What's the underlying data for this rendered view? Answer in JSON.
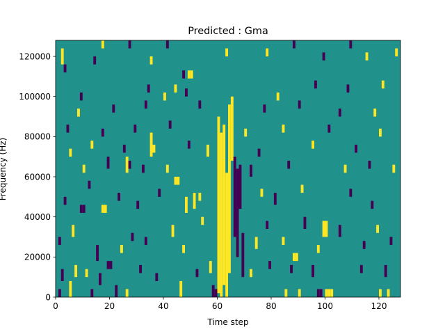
{
  "chart_data": {
    "type": "heatmap",
    "title": "Predicted : Gma",
    "xlabel": "Time step",
    "ylabel": "Frequency (Hz)",
    "xlim": [
      0,
      128
    ],
    "ylim": [
      0,
      128000
    ],
    "x_ticks": [
      0,
      20,
      40,
      60,
      80,
      100,
      120
    ],
    "y_ticks": [
      0,
      20000,
      40000,
      60000,
      80000,
      100000,
      120000
    ],
    "x_tick_labels": [
      "0",
      "20",
      "40",
      "60",
      "80",
      "100",
      "120"
    ],
    "y_tick_labels": [
      "0",
      "20000",
      "40000",
      "60000",
      "80000",
      "100000",
      "120000"
    ],
    "n_time_steps": 128,
    "n_freq_bins": 128,
    "bin_height_hz": 1000,
    "grid": false,
    "colormap": "viridis",
    "colors": {
      "background": "#21918c",
      "high": "#fde725",
      "low": "#440154"
    },
    "cells": [
      {
        "t": 58,
        "f0": 0,
        "f1": 6000,
        "level": "low"
      },
      {
        "t": 59,
        "f0": 0,
        "f1": 4000,
        "level": "low"
      },
      {
        "t": 60,
        "f0": 2000,
        "f1": 90000,
        "level": "high"
      },
      {
        "t": 61,
        "f0": 0,
        "f1": 82000,
        "level": "high"
      },
      {
        "t": 62,
        "f0": 6000,
        "f1": 86000,
        "level": "high"
      },
      {
        "t": 63,
        "f0": 0,
        "f1": 62000,
        "level": "high"
      },
      {
        "t": 64,
        "f0": 12000,
        "f1": 96000,
        "level": "high"
      },
      {
        "t": 65,
        "f0": 68000,
        "f1": 100000,
        "level": "high"
      },
      {
        "t": 66,
        "f0": 30000,
        "f1": 70000,
        "level": "low"
      },
      {
        "t": 67,
        "f0": 20000,
        "f1": 64000,
        "level": "low"
      },
      {
        "t": 68,
        "f0": 44000,
        "f1": 66000,
        "level": "low"
      },
      {
        "t": 69,
        "f0": 10000,
        "f1": 32000,
        "level": "low"
      },
      {
        "t": 97,
        "f0": 0,
        "f1": 4000,
        "level": "low"
      },
      {
        "t": 98,
        "f0": 0,
        "f1": 4000,
        "level": "low"
      },
      {
        "t": 100,
        "f0": 0,
        "f1": 4000,
        "level": "high"
      },
      {
        "t": 101,
        "f0": 0,
        "f1": 4000,
        "level": "high"
      },
      {
        "t": 102,
        "f0": 0,
        "f1": 4000,
        "level": "high"
      },
      {
        "t": 47,
        "f0": 109000,
        "f1": 113000,
        "level": "low"
      },
      {
        "t": 49,
        "f0": 109000,
        "f1": 113000,
        "level": "high"
      },
      {
        "t": 50,
        "f0": 109000,
        "f1": 113000,
        "level": "high"
      },
      {
        "t": 2,
        "f0": 116000,
        "f1": 124000,
        "level": "high"
      },
      {
        "t": 3,
        "f0": 112000,
        "f1": 116000,
        "level": "low"
      },
      {
        "t": 17,
        "f0": 124000,
        "f1": 128000,
        "level": "high"
      },
      {
        "t": 26,
        "f0": 62000,
        "f1": 70000,
        "level": "high"
      },
      {
        "t": 27,
        "f0": 64000,
        "f1": 68000,
        "level": "low"
      },
      {
        "t": 18,
        "f0": 42000,
        "f1": 46000,
        "level": "high"
      },
      {
        "t": 17,
        "f0": 42000,
        "f1": 46000,
        "level": "high"
      },
      {
        "t": 9,
        "f0": 42000,
        "f1": 46000,
        "level": "low"
      },
      {
        "t": 10,
        "f0": 42000,
        "f1": 46000,
        "level": "low"
      },
      {
        "t": 19,
        "f0": 14000,
        "f1": 18000,
        "level": "low"
      },
      {
        "t": 20,
        "f0": 14000,
        "f1": 18000,
        "level": "low"
      },
      {
        "t": 88,
        "f0": 18000,
        "f1": 22000,
        "level": "high"
      },
      {
        "t": 89,
        "f0": 18000,
        "f1": 22000,
        "level": "high"
      },
      {
        "t": 99,
        "f0": 30000,
        "f1": 38000,
        "level": "high"
      },
      {
        "t": 100,
        "f0": 30000,
        "f1": 38000,
        "level": "high"
      },
      {
        "t": 48,
        "f0": 42000,
        "f1": 50000,
        "level": "high"
      },
      {
        "t": 51,
        "f0": 44000,
        "f1": 52000,
        "level": "high"
      },
      {
        "t": 44,
        "f0": 56000,
        "f1": 60000,
        "level": "high"
      },
      {
        "t": 45,
        "f0": 56000,
        "f1": 60000,
        "level": "high"
      },
      {
        "t": 56,
        "f0": 70000,
        "f1": 76000,
        "level": "high"
      },
      {
        "t": 35,
        "f0": 70000,
        "f1": 82000,
        "level": "high"
      },
      {
        "t": 40,
        "f0": 98000,
        "f1": 102000,
        "level": "high"
      },
      {
        "t": 44,
        "f0": 102000,
        "f1": 106000,
        "level": "high"
      },
      {
        "t": 1,
        "f0": 0,
        "f1": 4000,
        "level": "low"
      },
      {
        "t": 5,
        "f0": 0,
        "f1": 8000,
        "level": "high"
      },
      {
        "t": 13,
        "f0": 0,
        "f1": 4000,
        "level": "low"
      },
      {
        "t": 22,
        "f0": 0,
        "f1": 6000,
        "level": "low"
      },
      {
        "t": 26,
        "f0": 0,
        "f1": 4000,
        "level": "high"
      },
      {
        "t": 46,
        "f0": 0,
        "f1": 8000,
        "level": "high"
      },
      {
        "t": 85,
        "f0": 0,
        "f1": 4000,
        "level": "high"
      },
      {
        "t": 90,
        "f0": 0,
        "f1": 4000,
        "level": "high"
      },
      {
        "t": 120,
        "f0": 0,
        "f1": 4000,
        "level": "high"
      },
      {
        "t": 123,
        "f0": 0,
        "f1": 4000,
        "level": "high"
      },
      {
        "t": 2,
        "f0": 8000,
        "f1": 14000,
        "level": "low"
      },
      {
        "t": 7,
        "f0": 10000,
        "f1": 16000,
        "level": "high"
      },
      {
        "t": 11,
        "f0": 10000,
        "f1": 14000,
        "level": "high"
      },
      {
        "t": 16,
        "f0": 6000,
        "f1": 12000,
        "level": "low"
      },
      {
        "t": 31,
        "f0": 12000,
        "f1": 16000,
        "level": "low"
      },
      {
        "t": 37,
        "f0": 8000,
        "f1": 12000,
        "level": "low"
      },
      {
        "t": 52,
        "f0": 10000,
        "f1": 14000,
        "level": "low"
      },
      {
        "t": 57,
        "f0": 12000,
        "f1": 18000,
        "level": "high"
      },
      {
        "t": 72,
        "f0": 10000,
        "f1": 14000,
        "level": "high"
      },
      {
        "t": 79,
        "f0": 14000,
        "f1": 18000,
        "level": "low"
      },
      {
        "t": 87,
        "f0": 12000,
        "f1": 16000,
        "level": "low"
      },
      {
        "t": 95,
        "f0": 10000,
        "f1": 16000,
        "level": "low"
      },
      {
        "t": 113,
        "f0": 12000,
        "f1": 16000,
        "level": "low"
      },
      {
        "t": 122,
        "f0": 10000,
        "f1": 16000,
        "level": "low"
      },
      {
        "t": 1,
        "f0": 26000,
        "f1": 30000,
        "level": "low"
      },
      {
        "t": 6,
        "f0": 30000,
        "f1": 36000,
        "level": "high"
      },
      {
        "t": 15,
        "f0": 18000,
        "f1": 26000,
        "level": "low"
      },
      {
        "t": 24,
        "f0": 22000,
        "f1": 26000,
        "level": "high"
      },
      {
        "t": 28,
        "f0": 28000,
        "f1": 32000,
        "level": "low"
      },
      {
        "t": 33,
        "f0": 26000,
        "f1": 30000,
        "level": "low"
      },
      {
        "t": 43,
        "f0": 30000,
        "f1": 36000,
        "level": "high"
      },
      {
        "t": 47,
        "f0": 22000,
        "f1": 26000,
        "level": "high"
      },
      {
        "t": 54,
        "f0": 36000,
        "f1": 40000,
        "level": "high"
      },
      {
        "t": 74,
        "f0": 24000,
        "f1": 30000,
        "level": "high"
      },
      {
        "t": 78,
        "f0": 34000,
        "f1": 38000,
        "level": "low"
      },
      {
        "t": 84,
        "f0": 26000,
        "f1": 30000,
        "level": "high"
      },
      {
        "t": 92,
        "f0": 34000,
        "f1": 40000,
        "level": "low"
      },
      {
        "t": 97,
        "f0": 22000,
        "f1": 26000,
        "level": "high"
      },
      {
        "t": 105,
        "f0": 30000,
        "f1": 36000,
        "level": "low"
      },
      {
        "t": 114,
        "f0": 24000,
        "f1": 28000,
        "level": "low"
      },
      {
        "t": 119,
        "f0": 32000,
        "f1": 36000,
        "level": "high"
      },
      {
        "t": 124,
        "f0": 26000,
        "f1": 30000,
        "level": "low"
      },
      {
        "t": 3,
        "f0": 46000,
        "f1": 50000,
        "level": "low"
      },
      {
        "t": 12,
        "f0": 54000,
        "f1": 58000,
        "level": "low"
      },
      {
        "t": 23,
        "f0": 48000,
        "f1": 52000,
        "level": "low"
      },
      {
        "t": 30,
        "f0": 44000,
        "f1": 48000,
        "level": "low"
      },
      {
        "t": 38,
        "f0": 50000,
        "f1": 54000,
        "level": "low"
      },
      {
        "t": 53,
        "f0": 48000,
        "f1": 52000,
        "level": "high"
      },
      {
        "t": 76,
        "f0": 50000,
        "f1": 54000,
        "level": "high"
      },
      {
        "t": 81,
        "f0": 46000,
        "f1": 52000,
        "level": "low"
      },
      {
        "t": 91,
        "f0": 52000,
        "f1": 56000,
        "level": "high"
      },
      {
        "t": 109,
        "f0": 50000,
        "f1": 54000,
        "level": "low"
      },
      {
        "t": 117,
        "f0": 44000,
        "f1": 48000,
        "level": "low"
      },
      {
        "t": 10,
        "f0": 62000,
        "f1": 66000,
        "level": "high"
      },
      {
        "t": 19,
        "f0": 64000,
        "f1": 70000,
        "level": "low"
      },
      {
        "t": 32,
        "f0": 62000,
        "f1": 66000,
        "level": "low"
      },
      {
        "t": 41,
        "f0": 62000,
        "f1": 66000,
        "level": "high"
      },
      {
        "t": 72,
        "f0": 60000,
        "f1": 66000,
        "level": "low"
      },
      {
        "t": 86,
        "f0": 64000,
        "f1": 68000,
        "level": "low"
      },
      {
        "t": 107,
        "f0": 62000,
        "f1": 66000,
        "level": "high"
      },
      {
        "t": 116,
        "f0": 64000,
        "f1": 68000,
        "level": "low"
      },
      {
        "t": 125,
        "f0": 62000,
        "f1": 66000,
        "level": "high"
      },
      {
        "t": 5,
        "f0": 70000,
        "f1": 74000,
        "level": "high"
      },
      {
        "t": 13,
        "f0": 74000,
        "f1": 78000,
        "level": "high"
      },
      {
        "t": 25,
        "f0": 72000,
        "f1": 76000,
        "level": "low"
      },
      {
        "t": 36,
        "f0": 72000,
        "f1": 76000,
        "level": "high"
      },
      {
        "t": 49,
        "f0": 74000,
        "f1": 78000,
        "level": "low"
      },
      {
        "t": 75,
        "f0": 70000,
        "f1": 74000,
        "level": "low"
      },
      {
        "t": 95,
        "f0": 74000,
        "f1": 78000,
        "level": "high"
      },
      {
        "t": 111,
        "f0": 72000,
        "f1": 76000,
        "level": "low"
      },
      {
        "t": 4,
        "f0": 82000,
        "f1": 86000,
        "level": "low"
      },
      {
        "t": 17,
        "f0": 80000,
        "f1": 84000,
        "level": "low"
      },
      {
        "t": 29,
        "f0": 82000,
        "f1": 86000,
        "level": "low"
      },
      {
        "t": 42,
        "f0": 84000,
        "f1": 88000,
        "level": "low"
      },
      {
        "t": 70,
        "f0": 80000,
        "f1": 84000,
        "level": "high"
      },
      {
        "t": 84,
        "f0": 82000,
        "f1": 86000,
        "level": "high"
      },
      {
        "t": 101,
        "f0": 82000,
        "f1": 86000,
        "level": "low"
      },
      {
        "t": 120,
        "f0": 80000,
        "f1": 84000,
        "level": "high"
      },
      {
        "t": 8,
        "f0": 90000,
        "f1": 94000,
        "level": "high"
      },
      {
        "t": 21,
        "f0": 92000,
        "f1": 96000,
        "level": "low"
      },
      {
        "t": 33,
        "f0": 94000,
        "f1": 98000,
        "level": "low"
      },
      {
        "t": 53,
        "f0": 94000,
        "f1": 98000,
        "level": "low"
      },
      {
        "t": 77,
        "f0": 92000,
        "f1": 96000,
        "level": "low"
      },
      {
        "t": 90,
        "f0": 94000,
        "f1": 98000,
        "level": "low"
      },
      {
        "t": 105,
        "f0": 90000,
        "f1": 94000,
        "level": "low"
      },
      {
        "t": 118,
        "f0": 90000,
        "f1": 94000,
        "level": "high"
      },
      {
        "t": 9,
        "f0": 98000,
        "f1": 102000,
        "level": "low"
      },
      {
        "t": 34,
        "f0": 102000,
        "f1": 106000,
        "level": "low"
      },
      {
        "t": 48,
        "f0": 100000,
        "f1": 104000,
        "level": "low"
      },
      {
        "t": 82,
        "f0": 98000,
        "f1": 102000,
        "level": "high"
      },
      {
        "t": 96,
        "f0": 104000,
        "f1": 108000,
        "level": "low"
      },
      {
        "t": 108,
        "f0": 102000,
        "f1": 106000,
        "level": "low"
      },
      {
        "t": 121,
        "f0": 104000,
        "f1": 108000,
        "level": "high"
      },
      {
        "t": 14,
        "f0": 116000,
        "f1": 120000,
        "level": "low"
      },
      {
        "t": 35,
        "f0": 116000,
        "f1": 120000,
        "level": "high"
      },
      {
        "t": 63,
        "f0": 120000,
        "f1": 124000,
        "level": "high"
      },
      {
        "t": 78,
        "f0": 120000,
        "f1": 124000,
        "level": "high"
      },
      {
        "t": 99,
        "f0": 118000,
        "f1": 122000,
        "level": "low"
      },
      {
        "t": 115,
        "f0": 118000,
        "f1": 122000,
        "level": "high"
      },
      {
        "t": 126,
        "f0": 120000,
        "f1": 124000,
        "level": "high"
      },
      {
        "t": 27,
        "f0": 124000,
        "f1": 128000,
        "level": "low"
      },
      {
        "t": 41,
        "f0": 124000,
        "f1": 128000,
        "level": "low"
      },
      {
        "t": 88,
        "f0": 124000,
        "f1": 128000,
        "level": "low"
      },
      {
        "t": 109,
        "f0": 124000,
        "f1": 128000,
        "level": "low"
      }
    ]
  }
}
